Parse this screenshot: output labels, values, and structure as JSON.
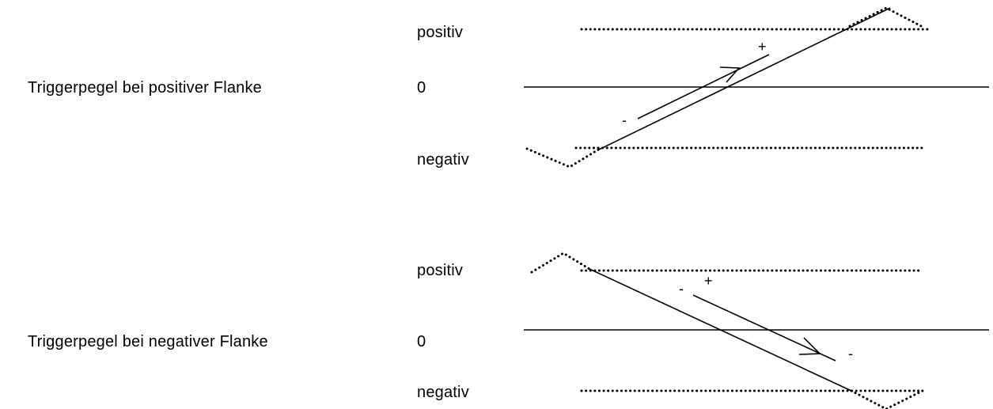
{
  "panels": [
    {
      "title": "Triggerpegel bei positiver Flanke",
      "levels": {
        "positive": "positiv",
        "zero": "0",
        "negative": "negativ"
      },
      "slope": "positive",
      "signs": {
        "start": "-",
        "end": "+"
      }
    },
    {
      "title": "Triggerpegel bei negativer Flanke",
      "levels": {
        "positive": "positiv",
        "zero": "0",
        "negative": "negativ"
      },
      "slope": "negative",
      "signs": {
        "start": "-",
        "plus": "+",
        "end": "-"
      }
    }
  ]
}
